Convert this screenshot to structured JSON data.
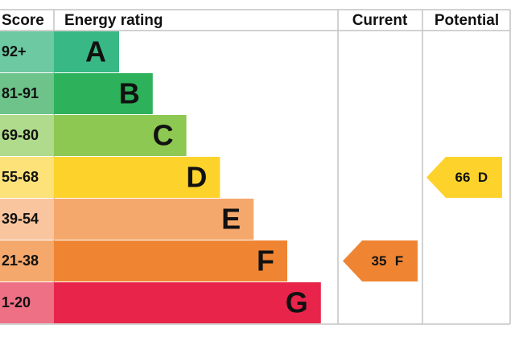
{
  "header": {
    "score": "Score",
    "rating": "Energy rating",
    "current": "Current",
    "potential": "Potential"
  },
  "bands": [
    {
      "score": "92+",
      "letter": "A",
      "color": "#38b885",
      "light": "#6cc9a2"
    },
    {
      "score": "81-91",
      "letter": "B",
      "color": "#2db25b",
      "light": "#6dc389"
    },
    {
      "score": "69-80",
      "letter": "C",
      "color": "#8dc852",
      "light": "#b0da8c"
    },
    {
      "score": "55-68",
      "letter": "D",
      "color": "#fdd32b",
      "light": "#fde27a"
    },
    {
      "score": "39-54",
      "letter": "E",
      "color": "#f5a86c",
      "light": "#f9c59e"
    },
    {
      "score": "21-38",
      "letter": "F",
      "color": "#ef8533",
      "light": "#f4a86c"
    },
    {
      "score": "1-20",
      "letter": "G",
      "color": "#e8244a",
      "light": "#ee7085"
    }
  ],
  "current": {
    "value": 35,
    "letter": "F",
    "band": 5
  },
  "potential": {
    "value": 66,
    "letter": "D",
    "band": 3
  }
}
